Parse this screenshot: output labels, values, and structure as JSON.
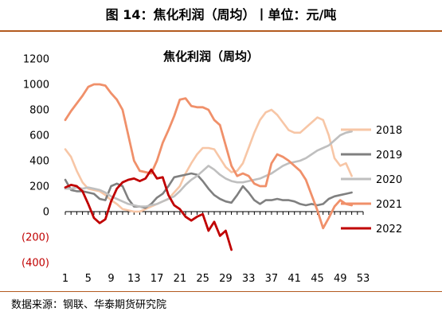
{
  "figure": {
    "title": "图 14：焦化利润（周均）丨单位：元/吨",
    "source": "数据来源：钢联、华泰期货研究院"
  },
  "chart_data": {
    "type": "line",
    "title": "焦化利润（周均）",
    "xlabel": "",
    "ylabel": "",
    "ylim": [
      -400,
      1200
    ],
    "xlim": [
      1,
      53
    ],
    "x_ticks": [
      1,
      5,
      9,
      13,
      17,
      21,
      25,
      29,
      33,
      37,
      41,
      45,
      49,
      53
    ],
    "y_ticks": [
      1200,
      1000,
      800,
      600,
      400,
      200,
      0,
      -200,
      -400
    ],
    "y_tick_labels": [
      "1200",
      "1000",
      "800",
      "600",
      "400",
      "200",
      "0",
      "(200)",
      "(400)"
    ],
    "grid": false,
    "legend_position": "right",
    "series": [
      {
        "name": "2018",
        "color": "#f7c6a6",
        "points": [
          [
            1,
            490
          ],
          [
            2,
            430
          ],
          [
            3,
            320
          ],
          [
            4,
            230
          ],
          [
            5,
            180
          ],
          [
            6,
            170
          ],
          [
            7,
            160
          ],
          [
            8,
            130
          ],
          [
            9,
            90
          ],
          [
            10,
            60
          ],
          [
            11,
            20
          ],
          [
            12,
            10
          ],
          [
            13,
            0
          ],
          [
            14,
            0
          ],
          [
            15,
            20
          ],
          [
            16,
            40
          ],
          [
            17,
            60
          ],
          [
            18,
            80
          ],
          [
            19,
            100
          ],
          [
            20,
            150
          ],
          [
            21,
            200
          ],
          [
            22,
            300
          ],
          [
            23,
            380
          ],
          [
            24,
            450
          ],
          [
            25,
            500
          ],
          [
            26,
            500
          ],
          [
            27,
            490
          ],
          [
            28,
            420
          ],
          [
            29,
            350
          ],
          [
            30,
            310
          ],
          [
            31,
            320
          ],
          [
            32,
            380
          ],
          [
            33,
            500
          ],
          [
            34,
            620
          ],
          [
            35,
            720
          ],
          [
            36,
            780
          ],
          [
            37,
            800
          ],
          [
            38,
            760
          ],
          [
            39,
            700
          ],
          [
            40,
            640
          ],
          [
            41,
            620
          ],
          [
            42,
            620
          ],
          [
            43,
            660
          ],
          [
            44,
            700
          ],
          [
            45,
            740
          ],
          [
            46,
            720
          ],
          [
            47,
            600
          ],
          [
            48,
            420
          ],
          [
            49,
            360
          ],
          [
            50,
            380
          ],
          [
            51,
            280
          ]
        ]
      },
      {
        "name": "2019",
        "color": "#808080",
        "points": [
          [
            1,
            250
          ],
          [
            2,
            170
          ],
          [
            3,
            160
          ],
          [
            4,
            160
          ],
          [
            5,
            150
          ],
          [
            6,
            140
          ],
          [
            7,
            100
          ],
          [
            8,
            90
          ],
          [
            9,
            200
          ],
          [
            10,
            220
          ],
          [
            11,
            200
          ],
          [
            12,
            100
          ],
          [
            13,
            40
          ],
          [
            14,
            40
          ],
          [
            15,
            30
          ],
          [
            16,
            60
          ],
          [
            17,
            110
          ],
          [
            18,
            140
          ],
          [
            19,
            200
          ],
          [
            20,
            270
          ],
          [
            21,
            280
          ],
          [
            22,
            290
          ],
          [
            23,
            300
          ],
          [
            24,
            290
          ],
          [
            25,
            240
          ],
          [
            26,
            180
          ],
          [
            27,
            130
          ],
          [
            28,
            100
          ],
          [
            29,
            80
          ],
          [
            30,
            70
          ],
          [
            31,
            130
          ],
          [
            32,
            200
          ],
          [
            33,
            150
          ],
          [
            34,
            90
          ],
          [
            35,
            60
          ],
          [
            36,
            90
          ],
          [
            37,
            90
          ],
          [
            38,
            100
          ],
          [
            39,
            90
          ],
          [
            40,
            90
          ],
          [
            41,
            80
          ],
          [
            42,
            60
          ],
          [
            43,
            50
          ],
          [
            44,
            60
          ],
          [
            45,
            50
          ],
          [
            46,
            60
          ],
          [
            47,
            100
          ],
          [
            48,
            120
          ],
          [
            49,
            130
          ],
          [
            50,
            140
          ],
          [
            51,
            150
          ]
        ]
      },
      {
        "name": "2020",
        "color": "#bfbfbf",
        "points": [
          [
            1,
            180
          ],
          [
            2,
            180
          ],
          [
            3,
            190
          ],
          [
            4,
            180
          ],
          [
            5,
            190
          ],
          [
            6,
            180
          ],
          [
            7,
            170
          ],
          [
            8,
            150
          ],
          [
            9,
            120
          ],
          [
            10,
            100
          ],
          [
            11,
            80
          ],
          [
            12,
            60
          ],
          [
            13,
            50
          ],
          [
            14,
            40
          ],
          [
            15,
            40
          ],
          [
            16,
            50
          ],
          [
            17,
            60
          ],
          [
            18,
            80
          ],
          [
            19,
            100
          ],
          [
            20,
            120
          ],
          [
            21,
            160
          ],
          [
            22,
            210
          ],
          [
            23,
            250
          ],
          [
            24,
            280
          ],
          [
            25,
            320
          ],
          [
            26,
            360
          ],
          [
            27,
            330
          ],
          [
            28,
            290
          ],
          [
            29,
            260
          ],
          [
            30,
            240
          ],
          [
            31,
            230
          ],
          [
            32,
            230
          ],
          [
            33,
            240
          ],
          [
            34,
            250
          ],
          [
            35,
            260
          ],
          [
            36,
            280
          ],
          [
            37,
            300
          ],
          [
            38,
            330
          ],
          [
            39,
            360
          ],
          [
            40,
            380
          ],
          [
            41,
            390
          ],
          [
            42,
            400
          ],
          [
            43,
            420
          ],
          [
            44,
            450
          ],
          [
            45,
            480
          ],
          [
            46,
            500
          ],
          [
            47,
            520
          ],
          [
            48,
            560
          ],
          [
            49,
            600
          ],
          [
            50,
            620
          ],
          [
            51,
            630
          ]
        ]
      },
      {
        "name": "2021",
        "color": "#f0906a",
        "points": [
          [
            1,
            720
          ],
          [
            2,
            790
          ],
          [
            3,
            850
          ],
          [
            4,
            910
          ],
          [
            5,
            980
          ],
          [
            6,
            1000
          ],
          [
            7,
            1000
          ],
          [
            8,
            990
          ],
          [
            9,
            930
          ],
          [
            10,
            880
          ],
          [
            11,
            800
          ],
          [
            12,
            600
          ],
          [
            13,
            400
          ],
          [
            14,
            320
          ],
          [
            15,
            310
          ],
          [
            16,
            300
          ],
          [
            17,
            400
          ],
          [
            18,
            540
          ],
          [
            19,
            640
          ],
          [
            20,
            750
          ],
          [
            21,
            880
          ],
          [
            22,
            890
          ],
          [
            23,
            830
          ],
          [
            24,
            820
          ],
          [
            25,
            820
          ],
          [
            26,
            800
          ],
          [
            27,
            720
          ],
          [
            28,
            680
          ],
          [
            29,
            520
          ],
          [
            30,
            360
          ],
          [
            31,
            280
          ],
          [
            32,
            300
          ],
          [
            33,
            280
          ],
          [
            34,
            220
          ],
          [
            35,
            200
          ],
          [
            36,
            200
          ],
          [
            37,
            380
          ],
          [
            38,
            450
          ],
          [
            39,
            430
          ],
          [
            40,
            400
          ],
          [
            41,
            360
          ],
          [
            42,
            320
          ],
          [
            43,
            250
          ],
          [
            44,
            130
          ],
          [
            45,
            10
          ],
          [
            46,
            -130
          ],
          [
            47,
            -50
          ],
          [
            48,
            40
          ],
          [
            49,
            90
          ],
          [
            50,
            60
          ],
          [
            51,
            50
          ]
        ]
      },
      {
        "name": "2022",
        "color": "#c00000",
        "points": [
          [
            1,
            190
          ],
          [
            2,
            210
          ],
          [
            3,
            200
          ],
          [
            4,
            160
          ],
          [
            5,
            60
          ],
          [
            6,
            -50
          ],
          [
            7,
            -90
          ],
          [
            8,
            -60
          ],
          [
            9,
            80
          ],
          [
            10,
            180
          ],
          [
            11,
            230
          ],
          [
            12,
            250
          ],
          [
            13,
            260
          ],
          [
            14,
            240
          ],
          [
            15,
            260
          ],
          [
            16,
            330
          ],
          [
            17,
            260
          ],
          [
            18,
            270
          ],
          [
            19,
            130
          ],
          [
            20,
            50
          ],
          [
            21,
            20
          ],
          [
            22,
            -40
          ],
          [
            23,
            -70
          ],
          [
            24,
            -40
          ],
          [
            25,
            -20
          ],
          [
            26,
            -150
          ],
          [
            27,
            -80
          ],
          [
            28,
            -190
          ],
          [
            29,
            -150
          ],
          [
            30,
            -300
          ]
        ]
      }
    ]
  }
}
